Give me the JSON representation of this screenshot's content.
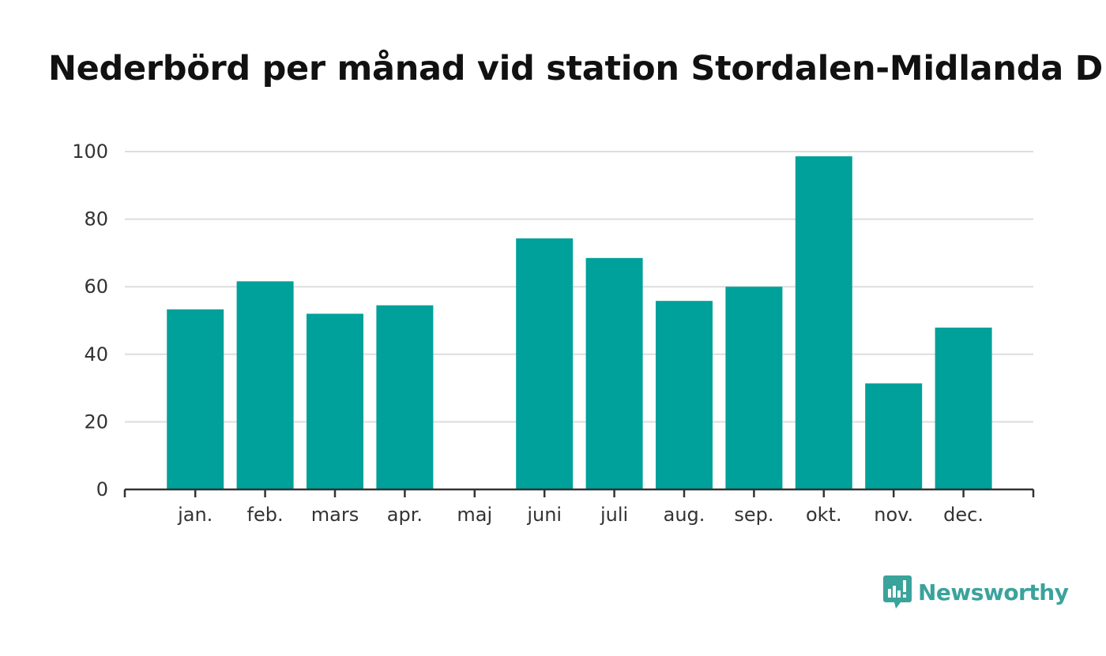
{
  "chart_data": {
    "type": "bar",
    "title": "Nederbörd per månad vid station Stordalen-Midlanda D",
    "xlabel": "",
    "ylabel": "",
    "categories": [
      "jan.",
      "feb.",
      "mars",
      "apr.",
      "maj",
      "juni",
      "juli",
      "aug.",
      "sep.",
      "okt.",
      "nov.",
      "dec."
    ],
    "values": [
      53.3,
      61.6,
      52.0,
      54.5,
      0,
      74.3,
      68.5,
      55.8,
      60.0,
      98.6,
      31.4,
      47.9
    ],
    "ylim": [
      0,
      100
    ],
    "yticks": [
      "0",
      "20",
      "40",
      "60",
      "80",
      "100"
    ],
    "grid": true,
    "bar_color": "#00a19a",
    "grid_color": "#dddddd",
    "axis_color": "#333333"
  },
  "logo": {
    "text": "Newsworthy",
    "icon": "newsworthy-speech-bubble-chart-icon",
    "color": "#3aa39b"
  }
}
